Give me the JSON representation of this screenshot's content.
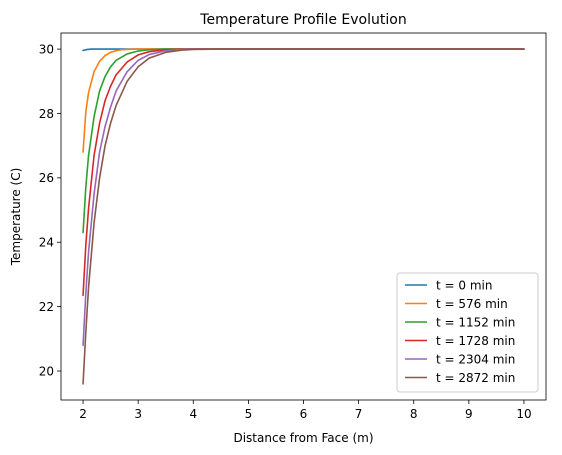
{
  "chart_data": {
    "type": "line",
    "title": "Temperature Profile Evolution",
    "xlabel": "Distance from Face (m)",
    "ylabel": "Temperature (C)",
    "xlim": [
      1.6,
      10.4
    ],
    "ylim": [
      19.1,
      30.5
    ],
    "xticks": [
      2,
      3,
      4,
      5,
      6,
      7,
      8,
      9,
      10
    ],
    "xtick_labels": [
      "2",
      "3",
      "4",
      "5",
      "6",
      "7",
      "8",
      "9",
      "10"
    ],
    "yticks": [
      20,
      22,
      24,
      26,
      28,
      30
    ],
    "ytick_labels": [
      "20",
      "22",
      "24",
      "26",
      "28",
      "30"
    ],
    "grid": false,
    "legend_position": "lower-right",
    "series": [
      {
        "name": "t = 0 min",
        "color": "#1f77b4",
        "x": [
          2.0,
          2.08,
          2.16,
          2.3,
          2.5,
          3.0,
          4.0,
          6.0,
          8.0,
          10.0
        ],
        "y": [
          29.96,
          29.99,
          30.0,
          30.0,
          30.0,
          30.0,
          30.0,
          30.0,
          30.0,
          30.0
        ]
      },
      {
        "name": "t = 576 min",
        "color": "#ff7f0e",
        "x": [
          2.0,
          2.05,
          2.1,
          2.2,
          2.3,
          2.4,
          2.5,
          2.6,
          2.7,
          2.8,
          3.0,
          3.5,
          4.0,
          6.0,
          8.0,
          10.0
        ],
        "y": [
          26.8,
          28.05,
          28.65,
          29.3,
          29.62,
          29.8,
          29.9,
          29.95,
          29.98,
          29.99,
          30.0,
          30.0,
          30.0,
          30.0,
          30.0,
          30.0
        ]
      },
      {
        "name": "t = 1152 min",
        "color": "#2ca02c",
        "x": [
          2.0,
          2.05,
          2.1,
          2.2,
          2.3,
          2.4,
          2.5,
          2.6,
          2.8,
          3.0,
          3.2,
          3.5,
          4.0,
          6.0,
          8.0,
          10.0
        ],
        "y": [
          24.3,
          25.7,
          26.7,
          27.9,
          28.7,
          29.15,
          29.45,
          29.65,
          29.85,
          29.94,
          29.98,
          30.0,
          30.0,
          30.0,
          30.0,
          30.0
        ]
      },
      {
        "name": "t = 1728 min",
        "color": "#d62728",
        "x": [
          2.0,
          2.05,
          2.1,
          2.2,
          2.3,
          2.4,
          2.5,
          2.6,
          2.8,
          3.0,
          3.2,
          3.5,
          3.8,
          4.0,
          6.0,
          8.0,
          10.0
        ],
        "y": [
          22.35,
          23.9,
          25.05,
          26.7,
          27.7,
          28.4,
          28.85,
          29.2,
          29.6,
          29.82,
          29.92,
          29.98,
          30.0,
          30.0,
          30.0,
          30.0,
          30.0
        ]
      },
      {
        "name": "t = 2304 min",
        "color": "#9467bd",
        "x": [
          2.0,
          2.05,
          2.1,
          2.2,
          2.3,
          2.4,
          2.5,
          2.6,
          2.8,
          3.0,
          3.2,
          3.5,
          3.8,
          4.0,
          6.0,
          8.0,
          10.0
        ],
        "y": [
          20.8,
          22.4,
          23.7,
          25.5,
          26.8,
          27.6,
          28.2,
          28.7,
          29.3,
          29.65,
          29.83,
          29.95,
          29.99,
          30.0,
          30.0,
          30.0,
          30.0
        ]
      },
      {
        "name": "t = 2872 min",
        "color": "#8c564b",
        "x": [
          2.0,
          2.05,
          2.1,
          2.2,
          2.3,
          2.4,
          2.5,
          2.6,
          2.8,
          3.0,
          3.2,
          3.5,
          3.8,
          4.0,
          4.5,
          6.0,
          8.0,
          10.0
        ],
        "y": [
          19.6,
          21.2,
          22.6,
          24.6,
          26.0,
          27.0,
          27.7,
          28.25,
          29.0,
          29.45,
          29.72,
          29.9,
          29.97,
          29.99,
          30.0,
          30.0,
          30.0,
          30.0
        ]
      }
    ]
  }
}
